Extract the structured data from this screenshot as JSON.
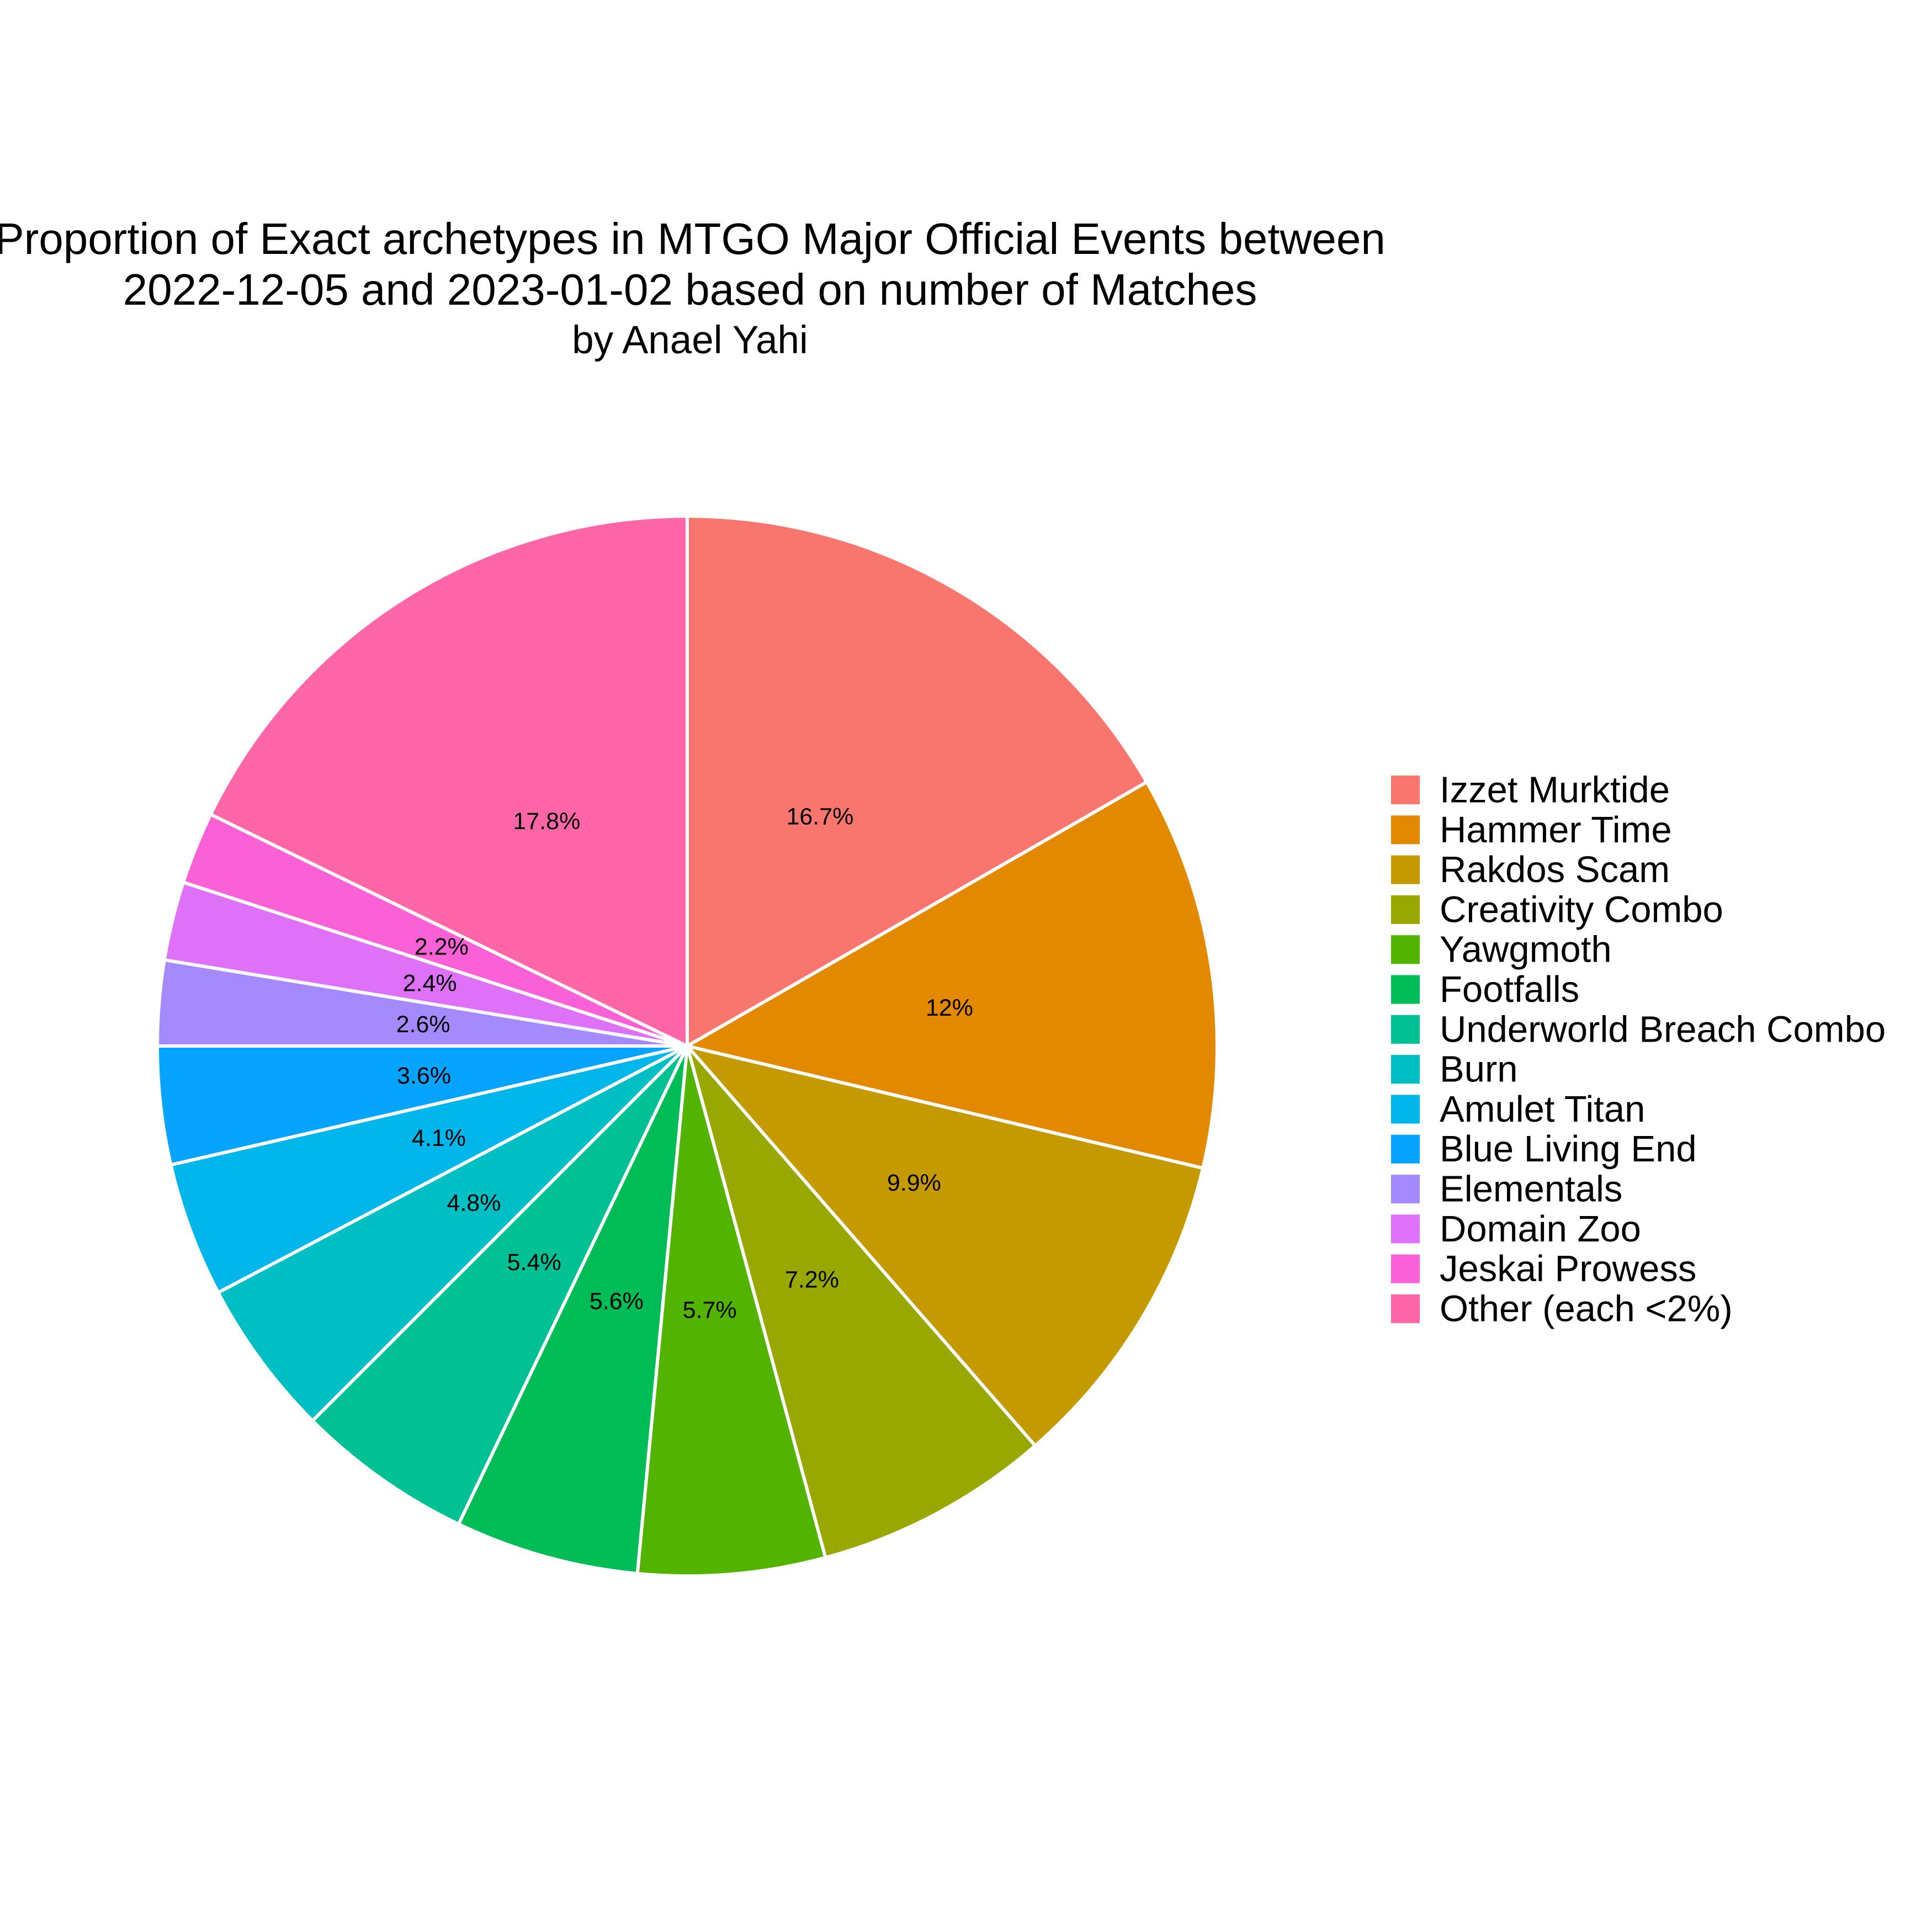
{
  "chart_data": {
    "type": "pie",
    "title_lines": [
      "Proportion of Exact archetypes in MTGO Major Official Events between",
      "2022-12-05 and 2023-01-02 based on number of Matches"
    ],
    "subtitle": "by Anael Yahi",
    "legend_position": "right",
    "direction": "clockwise",
    "start_angle": "12 o'clock",
    "slices": [
      {
        "name": "Izzet Murktide",
        "value": 16.7,
        "label": "16.7%",
        "color": "#F8766D"
      },
      {
        "name": "Hammer Time",
        "value": 12.0,
        "label": "12%",
        "color": "#E38900"
      },
      {
        "name": "Rakdos Scam",
        "value": 9.9,
        "label": "9.9%",
        "color": "#C49A00"
      },
      {
        "name": "Creativity Combo",
        "value": 7.2,
        "label": "7.2%",
        "color": "#99A800"
      },
      {
        "name": "Yawgmoth",
        "value": 5.7,
        "label": "5.7%",
        "color": "#53B400"
      },
      {
        "name": "Footfalls",
        "value": 5.6,
        "label": "5.6%",
        "color": "#00BC56"
      },
      {
        "name": "Underworld Breach Combo",
        "value": 5.4,
        "label": "5.4%",
        "color": "#00C094"
      },
      {
        "name": "Burn",
        "value": 4.8,
        "label": "4.8%",
        "color": "#00BFC4"
      },
      {
        "name": "Amulet Titan",
        "value": 4.1,
        "label": "4.1%",
        "color": "#00B6EB"
      },
      {
        "name": "Blue Living End",
        "value": 3.6,
        "label": "3.6%",
        "color": "#06A4FF"
      },
      {
        "name": "Elementals",
        "value": 2.6,
        "label": "2.6%",
        "color": "#A58AFF"
      },
      {
        "name": "Domain Zoo",
        "value": 2.4,
        "label": "2.4%",
        "color": "#DF70F8"
      },
      {
        "name": "Jeskai Prowess",
        "value": 2.2,
        "label": "2.2%",
        "color": "#FB61D7"
      },
      {
        "name": "Other (each <2%)",
        "value": 17.8,
        "label": "17.8%",
        "color": "#FF66A8"
      }
    ]
  }
}
